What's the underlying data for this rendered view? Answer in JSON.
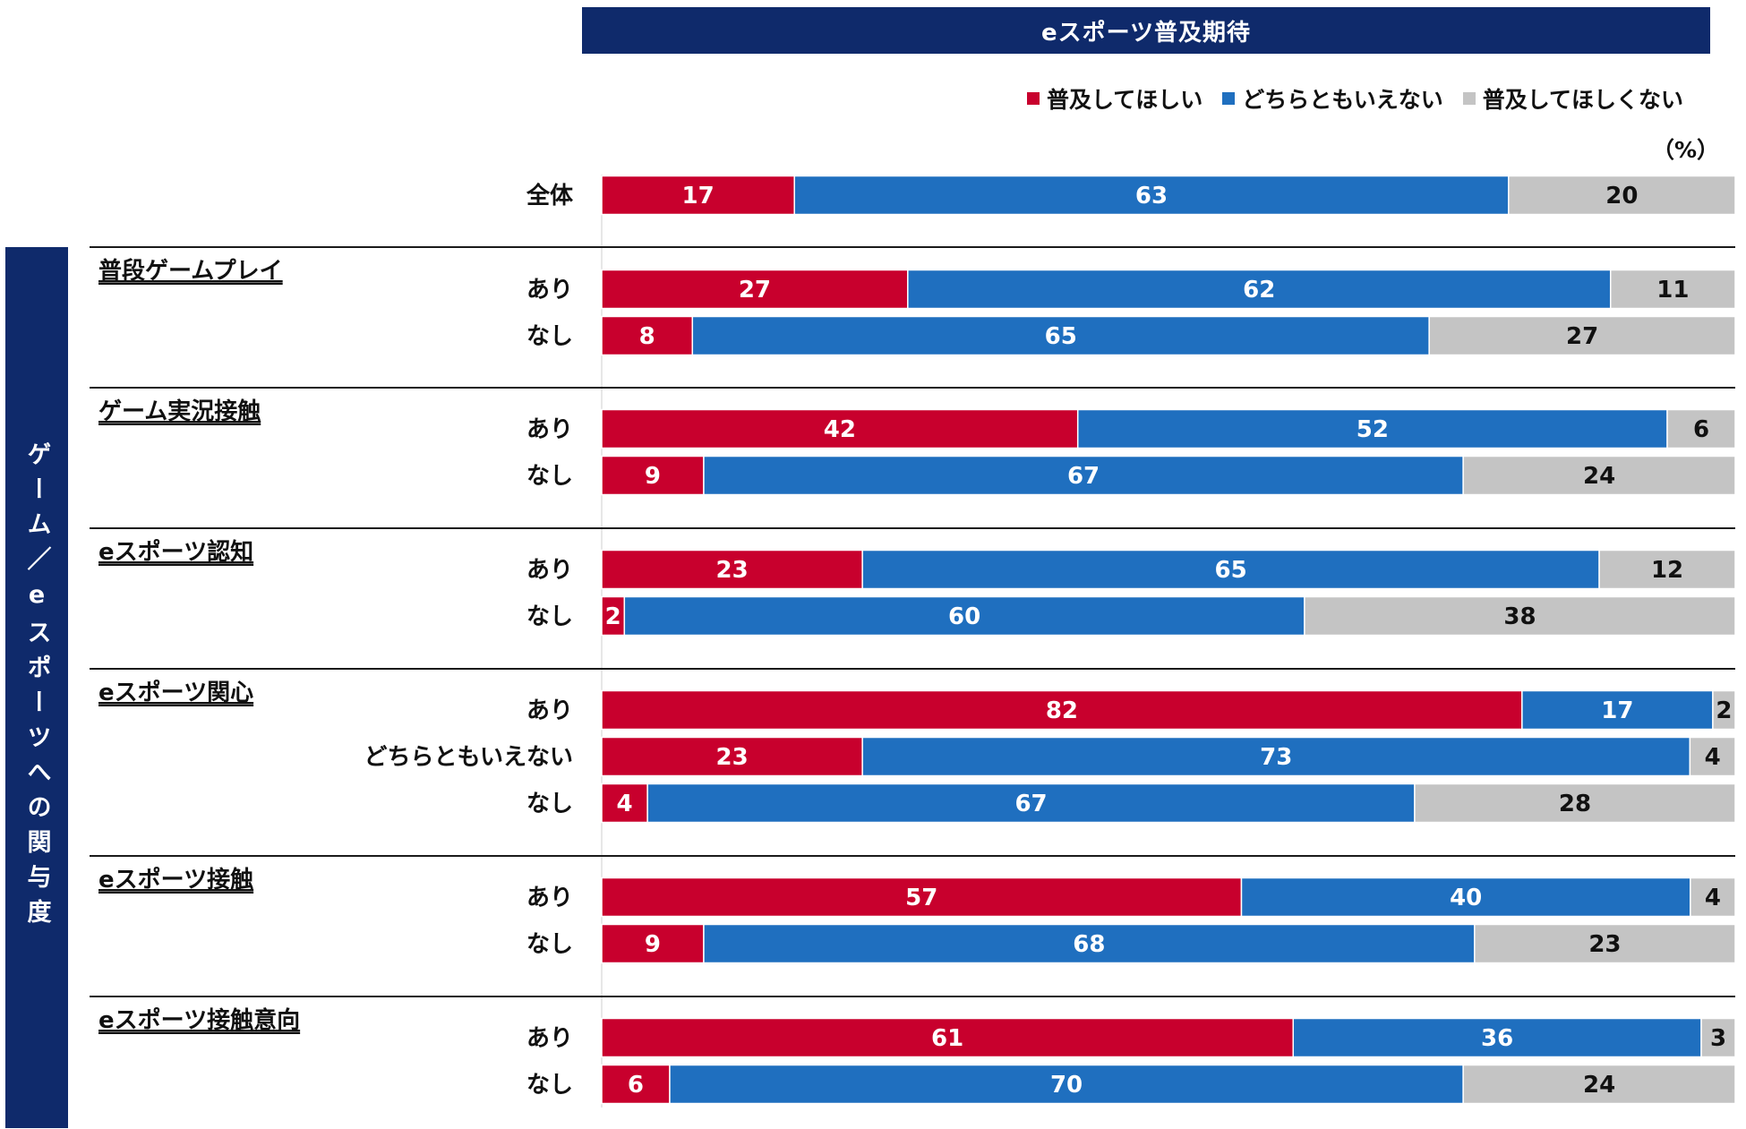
{
  "header": {
    "title": "eスポーツ普及期待"
  },
  "legend": {
    "items": [
      {
        "label": "普及してほしい",
        "color": "#c8002d"
      },
      {
        "label": "どちらともいえない",
        "color": "#1f6fbf"
      },
      {
        "label": "普及してほしくない",
        "color": "#c4c4c4"
      }
    ]
  },
  "unit_label": "（%）",
  "side_label": "ゲーム／eスポーツへの関与度",
  "chart_data": {
    "type": "stacked-bar-horizontal",
    "title": "eスポーツ普及期待",
    "unit": "%",
    "xlim": [
      0,
      100
    ],
    "series": [
      {
        "name": "普及してほしい",
        "color": "#c8002d"
      },
      {
        "name": "どちらともいえない",
        "color": "#1f6fbf"
      },
      {
        "name": "普及してほしくない",
        "color": "#c4c4c4"
      }
    ],
    "groups": [
      {
        "title": "",
        "rows": [
          {
            "label": "全体",
            "values": [
              17,
              63,
              20
            ]
          }
        ]
      },
      {
        "title": "普段ゲームプレイ",
        "rows": [
          {
            "label": "あり",
            "values": [
              27,
              62,
              11
            ]
          },
          {
            "label": "なし",
            "values": [
              8,
              65,
              27
            ]
          }
        ]
      },
      {
        "title": "ゲーム実況接触",
        "rows": [
          {
            "label": "あり",
            "values": [
              42,
              52,
              6
            ]
          },
          {
            "label": "なし",
            "values": [
              9,
              67,
              24
            ]
          }
        ]
      },
      {
        "title": "eスポーツ認知",
        "rows": [
          {
            "label": "あり",
            "values": [
              23,
              65,
              12
            ]
          },
          {
            "label": "なし",
            "values": [
              2,
              60,
              38
            ]
          }
        ]
      },
      {
        "title": "eスポーツ関心",
        "rows": [
          {
            "label": "あり",
            "values": [
              82,
              17,
              2
            ]
          },
          {
            "label": "どちらともいえない",
            "values": [
              23,
              73,
              4
            ]
          },
          {
            "label": "なし",
            "values": [
              4,
              67,
              28
            ]
          }
        ]
      },
      {
        "title": "eスポーツ接触",
        "rows": [
          {
            "label": "あり",
            "values": [
              57,
              40,
              4
            ]
          },
          {
            "label": "なし",
            "values": [
              9,
              68,
              23
            ]
          }
        ]
      },
      {
        "title": "eスポーツ接触意向",
        "rows": [
          {
            "label": "あり",
            "values": [
              61,
              36,
              3
            ]
          },
          {
            "label": "なし",
            "values": [
              6,
              70,
              24
            ]
          }
        ]
      }
    ]
  }
}
